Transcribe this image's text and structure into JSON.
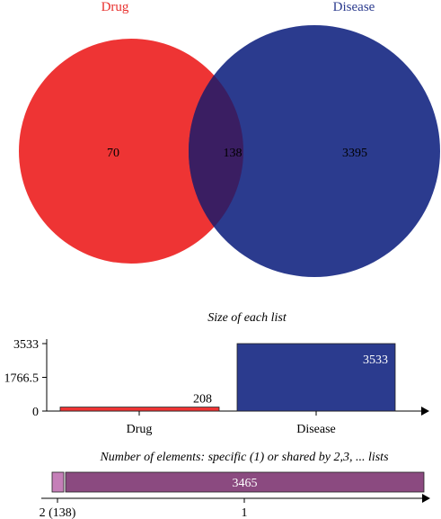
{
  "venn": {
    "sets": [
      {
        "name": "Drug",
        "color": "#ee3434",
        "label_color": "#e8302d"
      },
      {
        "name": "Disease",
        "color": "#2b3b8e",
        "label_color": "#2b3b8e"
      }
    ],
    "overlap_color": "#3a1e62",
    "regions": {
      "drug_only": "70",
      "shared": "138",
      "disease_only": "3395"
    }
  },
  "chart_data": [
    {
      "type": "bar",
      "title": "Size of each list",
      "categories": [
        "Drug",
        "Disease"
      ],
      "values": [
        208,
        3533
      ],
      "value_labels": [
        "208",
        "3533"
      ],
      "colors": [
        "#ee3434",
        "#2b3b8e"
      ],
      "yticks": [
        "3533",
        "1766.5",
        "0"
      ],
      "ytick_values": [
        3533,
        1766.5,
        0
      ],
      "ylim": [
        0,
        3533
      ],
      "xlabel": "",
      "ylabel": ""
    },
    {
      "type": "bar",
      "title": "Number of elements: specific (1) or shared by 2,3, ... lists",
      "orientation": "horizontal-stacked",
      "segments": [
        {
          "category": "2 (138)",
          "value": 138,
          "label": "",
          "color": "#c57fb8"
        },
        {
          "category": "1",
          "value": 3465,
          "label": "3465",
          "color": "#8b4a80"
        }
      ],
      "tick_labels": [
        "2 (138)",
        "1"
      ]
    }
  ]
}
